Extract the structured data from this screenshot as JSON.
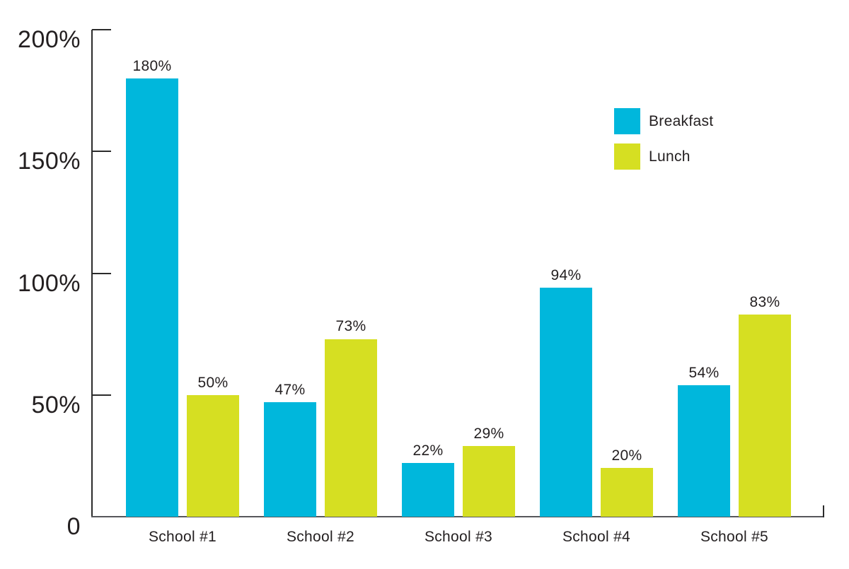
{
  "chart_data": {
    "type": "bar",
    "title": "",
    "xlabel": "",
    "ylabel": "",
    "categories": [
      "School #1",
      "School #2",
      "School #3",
      "School #4",
      "School #5"
    ],
    "series": [
      {
        "name": "Breakfast",
        "color": "#00b7dc",
        "values": [
          180,
          47,
          22,
          94,
          54
        ],
        "data_labels": [
          "180%",
          "47%",
          "22%",
          "94%",
          "54%"
        ]
      },
      {
        "name": "Lunch",
        "color": "#d6df22",
        "values": [
          50,
          73,
          29,
          20,
          83
        ],
        "data_labels": [
          "50%",
          "73%",
          "29%",
          "20%",
          "83%"
        ]
      }
    ],
    "ylim": [
      0,
      200
    ],
    "yticks": [
      {
        "value": 200,
        "label": "200%"
      },
      {
        "value": 150,
        "label": "150%"
      },
      {
        "value": 100,
        "label": "100%"
      },
      {
        "value": 50,
        "label": "50%"
      },
      {
        "value": 0,
        "label": "0"
      }
    ],
    "grid": false,
    "legend_position": "top-right",
    "text_color": "#231f20",
    "axis_color": "#2b2b2b",
    "baseline_color": "#56575b",
    "background": "#ffffff"
  }
}
